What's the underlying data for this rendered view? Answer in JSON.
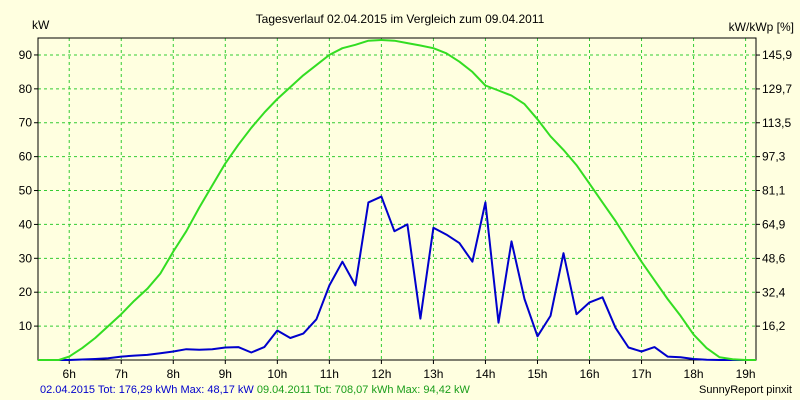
{
  "chart_data": {
    "type": "line",
    "title": "Tagesverlauf 02.04.2015 im Vergleich zum 09.04.2011",
    "ylabel": "kW",
    "ylabel_right": "kW/kWp [%]",
    "xlabel": "",
    "xlim": [
      5.4,
      19.2
    ],
    "ylim": [
      0,
      95
    ],
    "grid": true,
    "x_ticks": [
      6,
      7,
      8,
      9,
      10,
      11,
      12,
      13,
      14,
      15,
      16,
      17,
      18,
      19
    ],
    "x_tick_labels": [
      "6h",
      "7h",
      "8h",
      "9h",
      "10h",
      "11h",
      "12h",
      "13h",
      "14h",
      "15h",
      "16h",
      "17h",
      "18h",
      "19h"
    ],
    "y_ticks": [
      10,
      20,
      30,
      40,
      50,
      60,
      70,
      80,
      90
    ],
    "y_tick_labels": [
      "10",
      "20",
      "30",
      "40",
      "50",
      "60",
      "70",
      "80",
      "90"
    ],
    "y2_tick_labels": [
      {
        "value": 16.2,
        "label": "16,2"
      },
      {
        "value": 32.4,
        "label": "32,4"
      },
      {
        "value": 48.6,
        "label": "48,6"
      },
      {
        "value": 64.9,
        "label": "64,9"
      },
      {
        "value": 81.1,
        "label": "81,1"
      },
      {
        "value": 97.3,
        "label": "97,3"
      },
      {
        "value": 113.5,
        "label": "113,5"
      },
      {
        "value": 129.7,
        "label": "129,7"
      },
      {
        "value": 145.9,
        "label": "145,9"
      }
    ],
    "y2_per_unit": 1.6216,
    "series": [
      {
        "name": "02.04.2015",
        "color": "#0000cc",
        "x": [
          5.4,
          6.0,
          6.5,
          6.75,
          7.0,
          7.25,
          7.5,
          7.75,
          8.0,
          8.25,
          8.5,
          8.75,
          9.0,
          9.25,
          9.5,
          9.75,
          10.0,
          10.25,
          10.5,
          10.75,
          11.0,
          11.25,
          11.5,
          11.75,
          12.0,
          12.25,
          12.5,
          12.75,
          13.0,
          13.25,
          13.5,
          13.75,
          14.0,
          14.25,
          14.5,
          14.75,
          15.0,
          15.25,
          15.5,
          15.75,
          16.0,
          16.25,
          16.5,
          16.75,
          17.0,
          17.25,
          17.5,
          17.75,
          18.0,
          18.25,
          18.5,
          18.75,
          19.0
        ],
        "y": [
          0,
          0,
          0.3,
          0.5,
          1.0,
          1.3,
          1.5,
          2.0,
          2.5,
          3.2,
          3.0,
          3.2,
          3.7,
          3.8,
          2.2,
          3.8,
          8.7,
          6.5,
          7.8,
          12.0,
          22.0,
          29.0,
          22.0,
          46.5,
          48.2,
          38.0,
          40.0,
          12.2,
          39.0,
          37.0,
          34.5,
          29.0,
          46.5,
          11.0,
          35.0,
          18.0,
          7.0,
          13.0,
          31.5,
          13.5,
          17.0,
          18.5,
          9.5,
          3.7,
          2.5,
          3.8,
          1.0,
          0.8,
          0.3,
          0.1,
          0,
          0,
          0
        ]
      },
      {
        "name": "09.04.2011",
        "color": "#33dd22",
        "x": [
          5.4,
          5.8,
          6.0,
          6.25,
          6.5,
          6.75,
          7.0,
          7.25,
          7.5,
          7.75,
          8.0,
          8.25,
          8.5,
          8.75,
          9.0,
          9.25,
          9.5,
          9.75,
          10.0,
          10.25,
          10.5,
          10.75,
          11.0,
          11.25,
          11.5,
          11.75,
          12.0,
          12.25,
          12.5,
          12.75,
          13.0,
          13.25,
          13.5,
          13.75,
          14.0,
          14.25,
          14.5,
          14.75,
          15.0,
          15.25,
          15.5,
          15.75,
          16.0,
          16.25,
          16.5,
          16.75,
          17.0,
          17.25,
          17.5,
          17.75,
          18.0,
          18.25,
          18.5,
          18.75,
          19.0,
          19.2
        ],
        "y": [
          0,
          0,
          1.0,
          3.5,
          6.5,
          10.0,
          13.5,
          17.5,
          21.0,
          25.5,
          32.0,
          38.0,
          45.0,
          51.5,
          58.0,
          63.5,
          68.5,
          73.0,
          77.0,
          80.5,
          84.0,
          87.0,
          90.0,
          92.0,
          93.0,
          94.2,
          94.4,
          94.2,
          93.5,
          92.8,
          92.0,
          90.5,
          88.0,
          85.0,
          81.0,
          79.5,
          78.0,
          75.5,
          71.0,
          66.0,
          62.0,
          57.5,
          52.0,
          46.5,
          41.0,
          35.0,
          29.0,
          23.5,
          18.0,
          13.0,
          7.5,
          3.5,
          0.8,
          0.2,
          0,
          0
        ]
      }
    ]
  },
  "footer": {
    "s1_label": "02.04.2015 Tot: 176,29 kWh Max: 48,17 kW",
    "s2_label": "09.04.2011 Tot: 708,07 kWh Max: 94,42 kW",
    "credit": "SunnyReport pinxit"
  }
}
